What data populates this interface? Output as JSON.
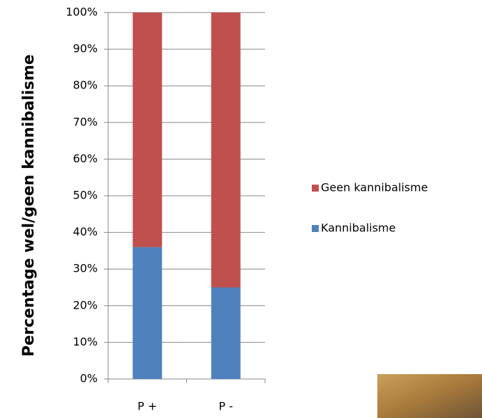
{
  "chart_data": {
    "type": "stacked_bar",
    "y_label": "Percentage wel/geen kannibalisme",
    "categories": [
      "P +",
      "P -"
    ],
    "series": [
      {
        "name": "Kannibalisme",
        "color": "#4f81bd",
        "values": [
          36,
          25
        ]
      },
      {
        "name": "Geen kannibalisme",
        "color": "#c0504d",
        "values": [
          64,
          75
        ]
      }
    ],
    "ylim": [
      0,
      100
    ],
    "yticks": [
      {
        "value": 0,
        "label": "0%"
      },
      {
        "value": 10,
        "label": "10%"
      },
      {
        "value": 20,
        "label": "20%"
      },
      {
        "value": 30,
        "label": "30%"
      },
      {
        "value": 40,
        "label": "40%"
      },
      {
        "value": 50,
        "label": "50%"
      },
      {
        "value": 60,
        "label": "60%"
      },
      {
        "value": 70,
        "label": "70%"
      },
      {
        "value": 80,
        "label": "80%"
      },
      {
        "value": 90,
        "label": "90%"
      },
      {
        "value": 100,
        "label": "100%"
      }
    ],
    "grid": true,
    "legend": "right"
  }
}
